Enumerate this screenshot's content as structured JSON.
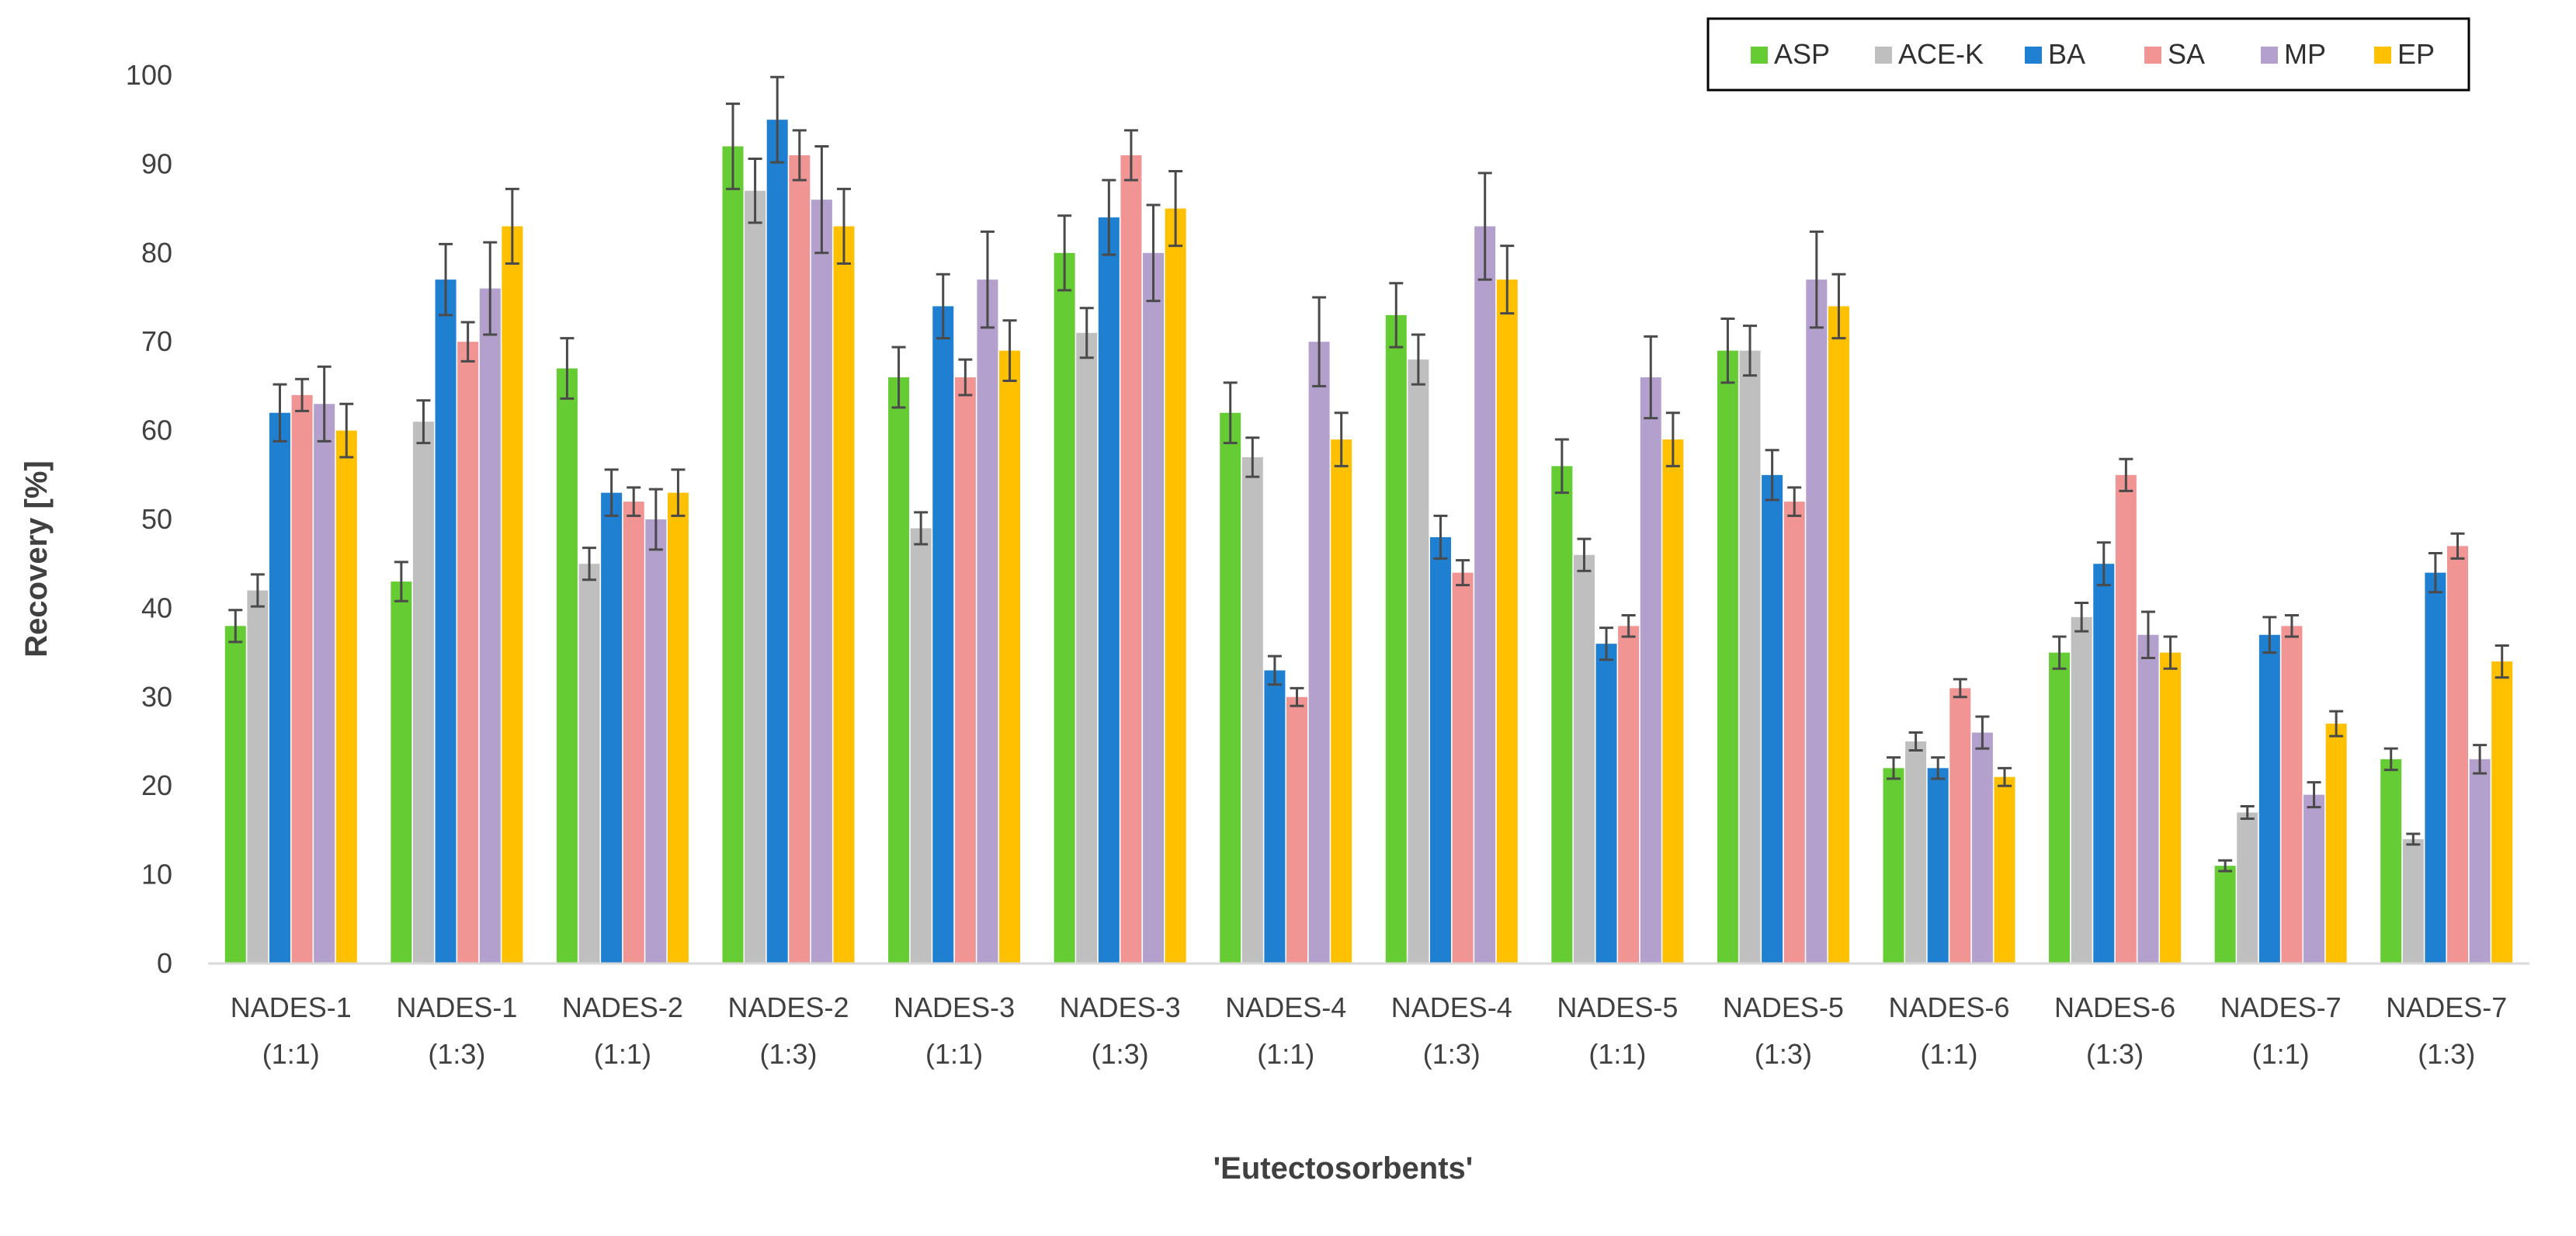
{
  "chart_data": {
    "type": "bar",
    "title": "",
    "xlabel": "'Eutectosorbents'",
    "ylabel": "Recovery [%]",
    "ylim": [
      0,
      100
    ],
    "ytick_step": 10,
    "grid": false,
    "legend_position": "top-right",
    "categories": [
      [
        "NADES-1",
        "(1:1)"
      ],
      [
        "NADES-1",
        "(1:3)"
      ],
      [
        "NADES-2",
        "(1:1)"
      ],
      [
        "NADES-2",
        "(1:3)"
      ],
      [
        "NADES-3",
        "(1:1)"
      ],
      [
        "NADES-3",
        "(1:3)"
      ],
      [
        "NADES-4",
        "(1:1)"
      ],
      [
        "NADES-4",
        "(1:3)"
      ],
      [
        "NADES-5",
        "(1:1)"
      ],
      [
        "NADES-5",
        "(1:3)"
      ],
      [
        "NADES-6",
        "(1:1)"
      ],
      [
        "NADES-6",
        "(1:3)"
      ],
      [
        "NADES-7",
        "(1:1)"
      ],
      [
        "NADES-7",
        "(1:3)"
      ]
    ],
    "series": [
      {
        "name": "ASP",
        "color": "#66CC33",
        "values": [
          38,
          43,
          67,
          92,
          66,
          80,
          62,
          73,
          56,
          69,
          22,
          35,
          11,
          23
        ],
        "errors": [
          1.8,
          2.2,
          3.4,
          4.8,
          3.4,
          4.2,
          3.4,
          3.6,
          3.0,
          3.6,
          1.2,
          1.8,
          0.6,
          1.2
        ]
      },
      {
        "name": "ACE-K",
        "color": "#BFBFBF",
        "values": [
          42,
          61,
          45,
          87,
          49,
          71,
          57,
          68,
          46,
          69,
          25,
          39,
          17,
          14
        ],
        "errors": [
          1.8,
          2.4,
          1.8,
          3.6,
          1.8,
          2.8,
          2.2,
          2.8,
          1.8,
          2.8,
          1.0,
          1.6,
          0.7,
          0.6
        ]
      },
      {
        "name": "BA",
        "color": "#1F7FD0",
        "values": [
          62,
          77,
          53,
          95,
          74,
          84,
          33,
          48,
          36,
          55,
          22,
          45,
          37,
          44
        ],
        "errors": [
          3.2,
          4.0,
          2.6,
          4.8,
          3.6,
          4.2,
          1.6,
          2.4,
          1.8,
          2.8,
          1.2,
          2.4,
          2.0,
          2.2
        ]
      },
      {
        "name": "SA",
        "color": "#F09494",
        "values": [
          64,
          70,
          52,
          91,
          66,
          91,
          30,
          44,
          38,
          52,
          31,
          55,
          38,
          47
        ],
        "errors": [
          1.8,
          2.2,
          1.6,
          2.8,
          2.0,
          2.8,
          1.0,
          1.4,
          1.2,
          1.6,
          1.0,
          1.8,
          1.2,
          1.4
        ]
      },
      {
        "name": "MP",
        "color": "#B4A0CC",
        "values": [
          63,
          76,
          50,
          86,
          77,
          80,
          70,
          83,
          66,
          77,
          26,
          37,
          19,
          23
        ],
        "errors": [
          4.2,
          5.2,
          3.4,
          6.0,
          5.4,
          5.4,
          5.0,
          6.0,
          4.6,
          5.4,
          1.8,
          2.6,
          1.4,
          1.6
        ]
      },
      {
        "name": "EP",
        "color": "#FFC000",
        "values": [
          60,
          83,
          53,
          83,
          69,
          85,
          59,
          77,
          59,
          74,
          21,
          35,
          27,
          34
        ],
        "errors": [
          3.0,
          4.2,
          2.6,
          4.2,
          3.4,
          4.2,
          3.0,
          3.8,
          3.0,
          3.6,
          1.0,
          1.8,
          1.4,
          1.8
        ]
      }
    ]
  }
}
